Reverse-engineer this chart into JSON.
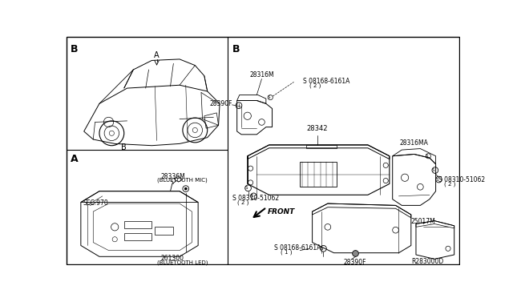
{
  "bg_color": "#ffffff",
  "fig_width": 6.4,
  "fig_height": 3.72,
  "dpi": 100,
  "line_color": "#000000",
  "text_color": "#000000",
  "diagram_ref": "R283000D",
  "sec_label_A": "A",
  "sec_label_B": "B",
  "label_sec970": "SEC.970",
  "label_28336M": "28336M",
  "label_28336M_sub": "(BLUETOOTH MIC)",
  "label_261300": "261300",
  "label_261300_sub": "(BLUETOOTH LED)",
  "label_28316M": "28316M",
  "label_28390F_top": "28390F",
  "label_28342": "28342",
  "label_28316MA": "28316MA",
  "label_screw_top": "S 08168-6161A",
  "label_screw_top_qty": "( 2 )",
  "label_bolt_left": "S 08310-51062",
  "label_bolt_left_qty": "( 2 )",
  "label_bolt_right": "S 08310-51062",
  "label_bolt_right_qty": "( 2 )",
  "label_screw_bot": "S 08168-6161A",
  "label_screw_bot_qty": "( 1 )",
  "label_28390F_bot": "28390F",
  "label_25017M": "25017M",
  "label_front": "FRONT"
}
